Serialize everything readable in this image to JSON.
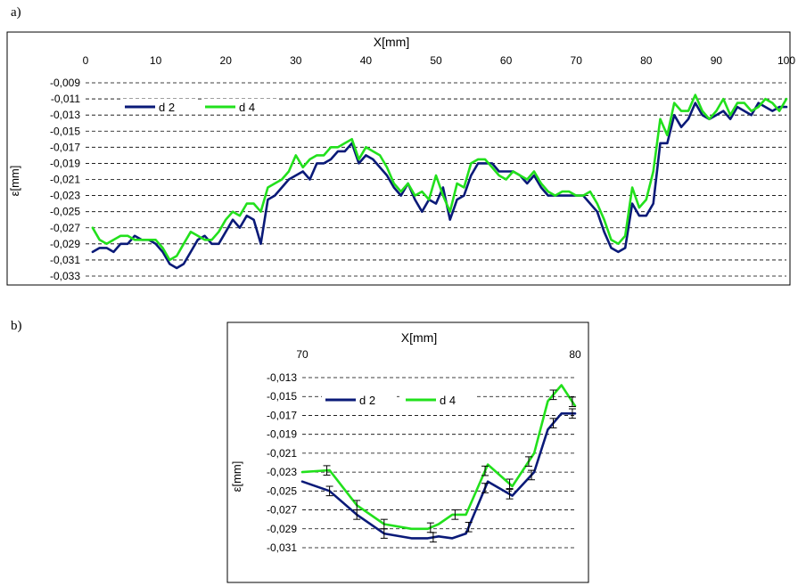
{
  "panels": {
    "a_label": "a)",
    "b_label": "b)"
  },
  "colors": {
    "d2": "#0a1a78",
    "d4": "#22e01c",
    "grid": "#000000",
    "frame": "#000000"
  },
  "chart_data": [
    {
      "id": "a",
      "type": "line",
      "title": "",
      "xlabel": "X[mm]",
      "ylabel": "ε[mm]",
      "xlim": [
        0,
        100
      ],
      "ylim": [
        -0.033,
        -0.009
      ],
      "x_ticks": [
        0,
        10,
        20,
        30,
        40,
        50,
        60,
        70,
        80,
        90,
        100
      ],
      "x_tick_labels": [
        "0",
        "10",
        "20",
        "30",
        "40",
        "50",
        "60",
        "70",
        "80",
        "90",
        "100"
      ],
      "y_ticks": [
        -0.009,
        -0.011,
        -0.013,
        -0.015,
        -0.017,
        -0.019,
        -0.021,
        -0.023,
        -0.025,
        -0.027,
        -0.029,
        -0.031,
        -0.033
      ],
      "y_tick_labels": [
        "-0,009",
        "-0,011",
        "-0,013",
        "-0,015",
        "-0,017",
        "-0,019",
        "-0,021",
        "-0,023",
        "-0,025",
        "-0,027",
        "-0,029",
        "-0,031",
        "-0,033"
      ],
      "grid": "horizontal dashed",
      "legend": "top-left",
      "series": [
        {
          "name": "d 2",
          "x": [
            1,
            2,
            3,
            4,
            5,
            6,
            7,
            8,
            9,
            10,
            11,
            12,
            13,
            14,
            15,
            16,
            17,
            18,
            19,
            20,
            21,
            22,
            23,
            24,
            25,
            26,
            27,
            28,
            29,
            30,
            31,
            32,
            33,
            34,
            35,
            36,
            37,
            38,
            39,
            40,
            41,
            42,
            43,
            44,
            45,
            46,
            47,
            48,
            49,
            50,
            51,
            52,
            53,
            54,
            55,
            56,
            57,
            58,
            59,
            60,
            61,
            62,
            63,
            64,
            65,
            66,
            67,
            68,
            69,
            70,
            71,
            72,
            73,
            74,
            75,
            76,
            77,
            78,
            79,
            80,
            81,
            82,
            83,
            84,
            85,
            86,
            87,
            88,
            89,
            90,
            91,
            92,
            93,
            94,
            95,
            96,
            97,
            98,
            99,
            100
          ],
          "values": [
            -0.03,
            -0.0295,
            -0.0295,
            -0.03,
            -0.029,
            -0.029,
            -0.028,
            -0.0285,
            -0.0285,
            -0.029,
            -0.03,
            -0.0315,
            -0.032,
            -0.0315,
            -0.03,
            -0.0285,
            -0.028,
            -0.029,
            -0.029,
            -0.0275,
            -0.026,
            -0.027,
            -0.0255,
            -0.026,
            -0.029,
            -0.0235,
            -0.023,
            -0.022,
            -0.021,
            -0.0205,
            -0.02,
            -0.021,
            -0.019,
            -0.019,
            -0.0185,
            -0.0175,
            -0.0175,
            -0.0165,
            -0.019,
            -0.018,
            -0.0185,
            -0.0195,
            -0.0205,
            -0.022,
            -0.023,
            -0.0215,
            -0.0235,
            -0.025,
            -0.0235,
            -0.024,
            -0.022,
            -0.026,
            -0.0235,
            -0.023,
            -0.0205,
            -0.019,
            -0.019,
            -0.019,
            -0.02,
            -0.02,
            -0.02,
            -0.0205,
            -0.0215,
            -0.0205,
            -0.022,
            -0.023,
            -0.023,
            -0.023,
            -0.023,
            -0.023,
            -0.023,
            -0.024,
            -0.025,
            -0.0275,
            -0.0295,
            -0.03,
            -0.0295,
            -0.024,
            -0.0255,
            -0.0255,
            -0.024,
            -0.0165,
            -0.0165,
            -0.013,
            -0.0145,
            -0.0135,
            -0.0115,
            -0.013,
            -0.0135,
            -0.013,
            -0.0125,
            -0.0135,
            -0.012,
            -0.0125,
            -0.013,
            -0.0115,
            -0.012,
            -0.0125,
            -0.012,
            -0.012
          ],
          "color": "#0a1a78"
        },
        {
          "name": "d 4",
          "x": [
            1,
            2,
            3,
            4,
            5,
            6,
            7,
            8,
            9,
            10,
            11,
            12,
            13,
            14,
            15,
            16,
            17,
            18,
            19,
            20,
            21,
            22,
            23,
            24,
            25,
            26,
            27,
            28,
            29,
            30,
            31,
            32,
            33,
            34,
            35,
            36,
            37,
            38,
            39,
            40,
            41,
            42,
            43,
            44,
            45,
            46,
            47,
            48,
            49,
            50,
            51,
            52,
            53,
            54,
            55,
            56,
            57,
            58,
            59,
            60,
            61,
            62,
            63,
            64,
            65,
            66,
            67,
            68,
            69,
            70,
            71,
            72,
            73,
            74,
            75,
            76,
            77,
            78,
            79,
            80,
            81,
            82,
            83,
            84,
            85,
            86,
            87,
            88,
            89,
            90,
            91,
            92,
            93,
            94,
            95,
            96,
            97,
            98,
            99,
            100
          ],
          "values": [
            -0.027,
            -0.0285,
            -0.029,
            -0.0285,
            -0.028,
            -0.028,
            -0.0285,
            -0.0285,
            -0.0285,
            -0.0285,
            -0.0295,
            -0.031,
            -0.0305,
            -0.029,
            -0.0275,
            -0.028,
            -0.0285,
            -0.0285,
            -0.0275,
            -0.026,
            -0.025,
            -0.0255,
            -0.024,
            -0.024,
            -0.025,
            -0.022,
            -0.0215,
            -0.021,
            -0.02,
            -0.018,
            -0.0195,
            -0.0185,
            -0.018,
            -0.018,
            -0.017,
            -0.017,
            -0.0165,
            -0.016,
            -0.0185,
            -0.017,
            -0.0175,
            -0.018,
            -0.0195,
            -0.0215,
            -0.0225,
            -0.0215,
            -0.023,
            -0.0225,
            -0.0235,
            -0.0205,
            -0.023,
            -0.025,
            -0.0215,
            -0.022,
            -0.019,
            -0.0185,
            -0.0185,
            -0.0195,
            -0.0205,
            -0.021,
            -0.02,
            -0.0205,
            -0.021,
            -0.02,
            -0.0215,
            -0.0225,
            -0.023,
            -0.0225,
            -0.0225,
            -0.023,
            -0.023,
            -0.0225,
            -0.024,
            -0.026,
            -0.0285,
            -0.029,
            -0.028,
            -0.022,
            -0.0245,
            -0.0235,
            -0.02,
            -0.0135,
            -0.0155,
            -0.0115,
            -0.0125,
            -0.0125,
            -0.0105,
            -0.0125,
            -0.0135,
            -0.0125,
            -0.011,
            -0.013,
            -0.0115,
            -0.0115,
            -0.0125,
            -0.012,
            -0.011,
            -0.0115,
            -0.0125,
            -0.011
          ],
          "color": "#22e01c"
        }
      ]
    },
    {
      "id": "b",
      "type": "line",
      "title": "",
      "xlabel": "X[mm]",
      "ylabel": "ε[mm]",
      "xlim": [
        70,
        80
      ],
      "ylim": [
        -0.031,
        -0.013
      ],
      "x_ticks": [
        70,
        80
      ],
      "x_tick_labels": [
        "70",
        "80"
      ],
      "y_ticks": [
        -0.013,
        -0.015,
        -0.017,
        -0.019,
        -0.021,
        -0.023,
        -0.025,
        -0.027,
        -0.029,
        -0.031
      ],
      "y_tick_labels": [
        "-0,013",
        "-0,015",
        "-0,017",
        "-0,019",
        "-0,021",
        "-0,023",
        "-0,025",
        "-0,027",
        "-0,029",
        "-0,031"
      ],
      "grid": "horizontal dashed",
      "legend": "top-left",
      "error_bars": "±0.0005 at sampled points",
      "series": [
        {
          "name": "d 2",
          "x": [
            70,
            71,
            72,
            73,
            74,
            74.6,
            75,
            75.5,
            76,
            76.8,
            77.7,
            78.5,
            79,
            79.5,
            80
          ],
          "values": [
            -0.024,
            -0.025,
            -0.0275,
            -0.0295,
            -0.03,
            -0.03,
            -0.0298,
            -0.03,
            -0.0295,
            -0.024,
            -0.0255,
            -0.023,
            -0.0185,
            -0.0168,
            -0.0168
          ],
          "errorbar_x": [
            71,
            72,
            73,
            74.8,
            76.1,
            76.7,
            77.6,
            78.4,
            79.2,
            79.9
          ],
          "color": "#0a1a78"
        },
        {
          "name": "d 4",
          "x": [
            70,
            71,
            72,
            73,
            74,
            74.6,
            75,
            75.5,
            76,
            76.8,
            77.7,
            78.5,
            79,
            79.5,
            80
          ],
          "values": [
            -0.023,
            -0.0228,
            -0.0265,
            -0.0285,
            -0.029,
            -0.029,
            -0.0285,
            -0.0275,
            -0.0275,
            -0.0222,
            -0.0245,
            -0.021,
            -0.0155,
            -0.0138,
            -0.016
          ],
          "errorbar_x": [
            70.9,
            72,
            73,
            74.7,
            75.6,
            76.7,
            77.6,
            78.3,
            79.2,
            79.9
          ],
          "color": "#22e01c"
        }
      ]
    }
  ]
}
